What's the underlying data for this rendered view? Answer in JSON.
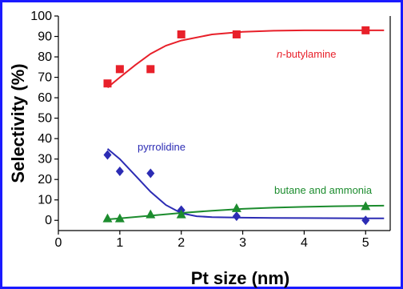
{
  "chart_data": {
    "type": "scatter",
    "xlabel": "Pt size (nm)",
    "ylabel": "Selectivity (%)",
    "xlim": [
      0,
      5.4
    ],
    "ylim": [
      -5,
      100
    ],
    "xticks": [
      0,
      1,
      2,
      3,
      4,
      5
    ],
    "yticks": [
      0,
      10,
      20,
      30,
      40,
      50,
      60,
      70,
      80,
      90,
      100
    ],
    "grid": false,
    "colors": {
      "frame": "#1a1aff"
    },
    "series": [
      {
        "name_prefix": "n",
        "name_suffix": "-butylamine",
        "color": "#e8202a",
        "marker": "square",
        "x": [
          0.8,
          1.0,
          1.5,
          2.0,
          2.9,
          5.0
        ],
        "y": [
          67,
          74,
          74,
          91,
          91,
          93
        ],
        "fit_x": [
          0.8,
          1.0,
          1.25,
          1.5,
          1.75,
          2.0,
          2.5,
          3.0,
          3.5,
          4.0,
          4.5,
          5.0,
          5.3
        ],
        "fit_y": [
          65,
          70,
          76,
          81.5,
          85.5,
          88,
          91,
          92.3,
          92.8,
          93,
          93,
          93,
          93
        ]
      },
      {
        "name": "pyrrolidine",
        "color": "#2c2cb4",
        "marker": "diamond",
        "x": [
          0.8,
          1.0,
          1.5,
          2.0,
          2.9,
          5.0
        ],
        "y": [
          32,
          24,
          23,
          5,
          2,
          0
        ],
        "fit_x": [
          0.8,
          1.0,
          1.25,
          1.5,
          1.75,
          2.0,
          2.25,
          2.5,
          3.0,
          3.5,
          4.0,
          5.0,
          5.3
        ],
        "fit_y": [
          35,
          30,
          22,
          14,
          7.5,
          3.5,
          2,
          1.6,
          1.3,
          1.2,
          1.1,
          1.0,
          1.0
        ]
      },
      {
        "name": "butane and ammonia",
        "color": "#1c8c2e",
        "marker": "triangle",
        "x": [
          0.8,
          1.0,
          1.5,
          2.0,
          2.9,
          5.0
        ],
        "y": [
          1,
          1,
          3,
          3,
          6,
          7
        ],
        "fit_x": [
          0.8,
          1.0,
          1.5,
          2.0,
          2.5,
          3.0,
          3.5,
          4.0,
          4.5,
          5.0,
          5.3
        ],
        "fit_y": [
          0.5,
          1.0,
          2.3,
          3.6,
          4.7,
          5.6,
          6.2,
          6.6,
          6.9,
          7.1,
          7.2
        ]
      }
    ]
  }
}
